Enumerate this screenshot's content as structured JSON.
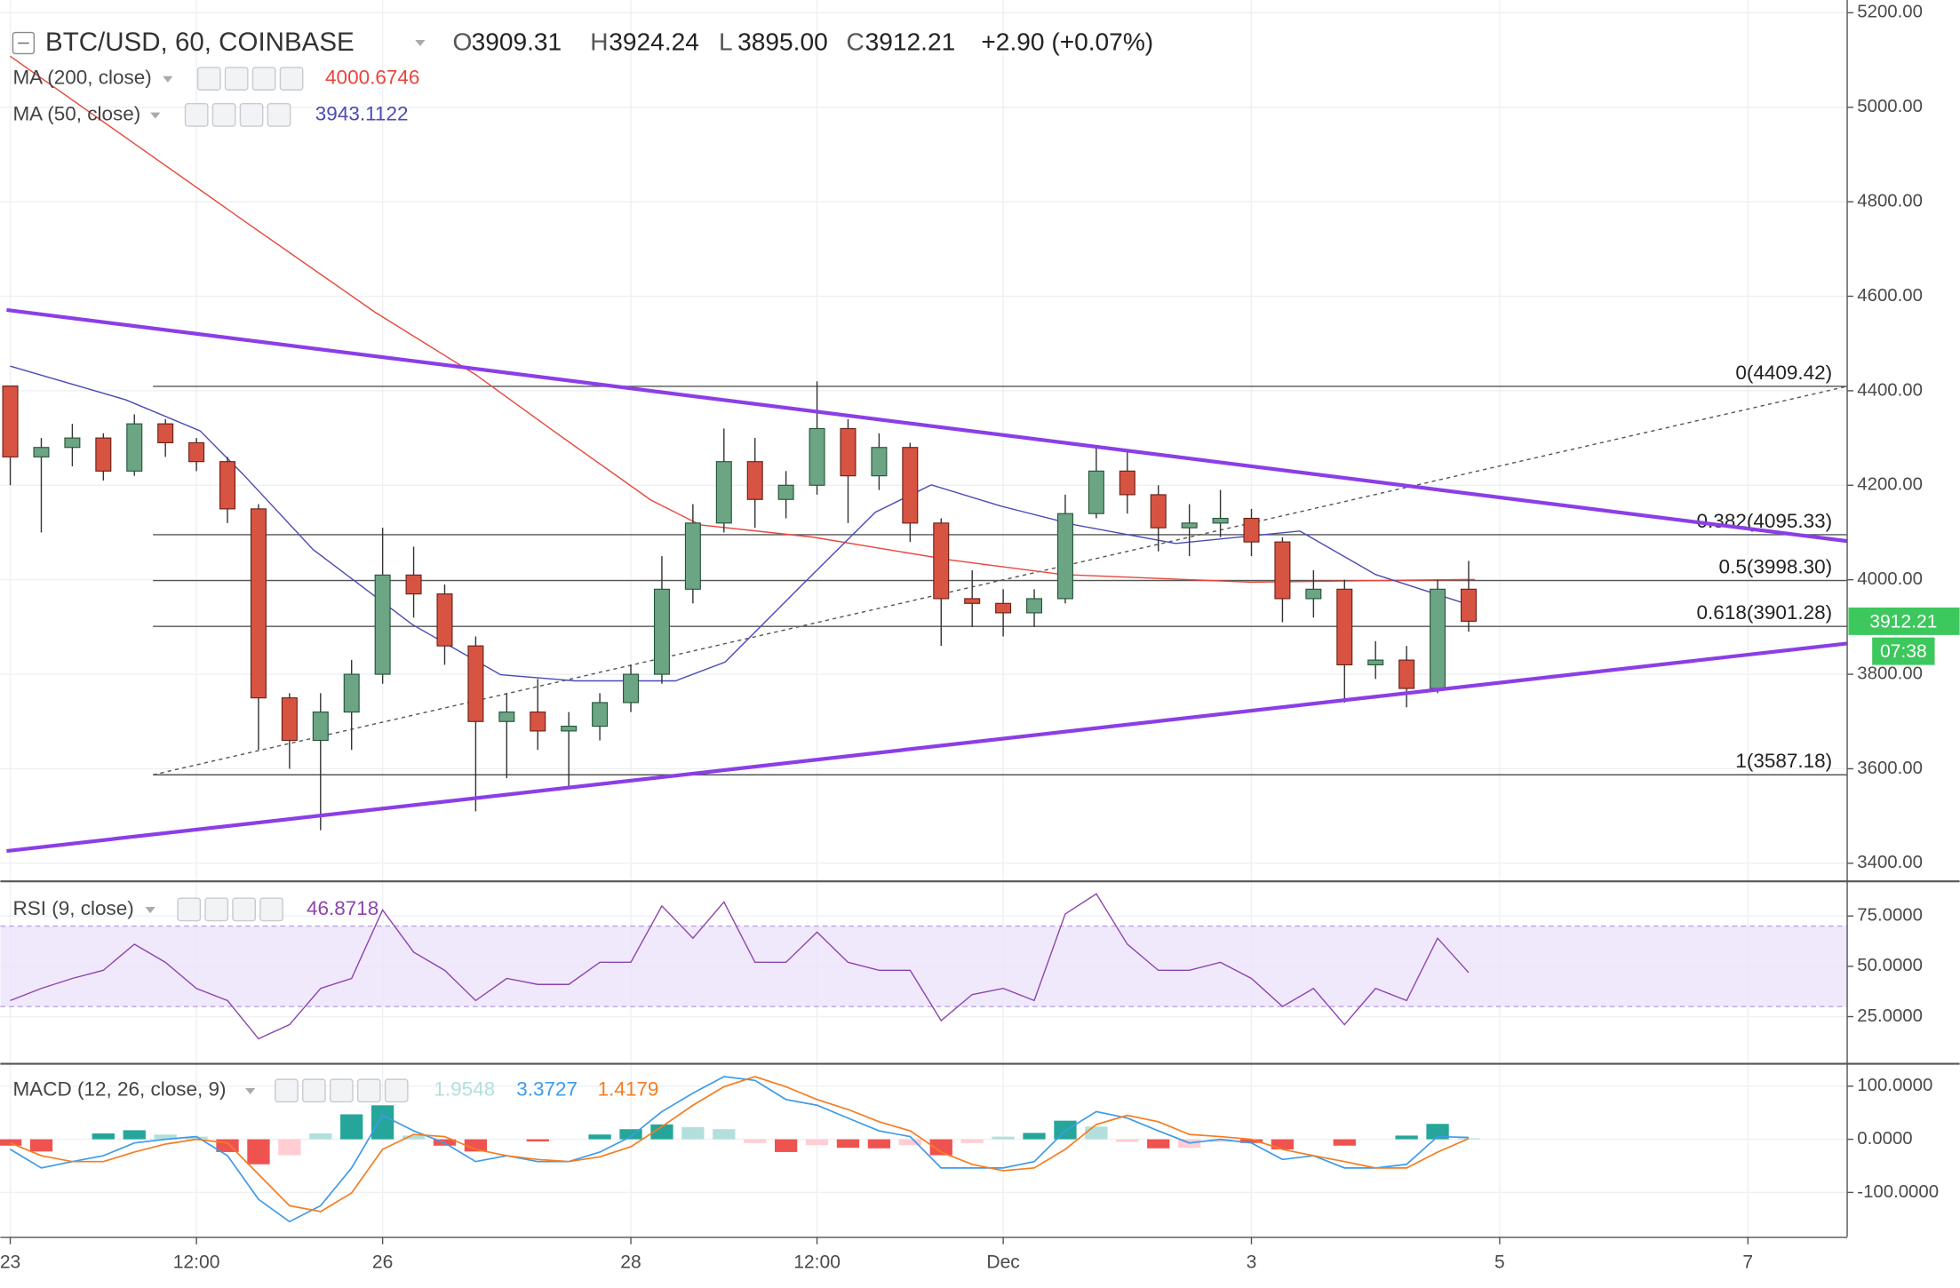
{
  "chart_data": [
    {
      "type": "candlestick",
      "title": "BTC/USD, 60, COINBASE",
      "ohlc": [
        {
          "key": "O",
          "value": "3909.31"
        },
        {
          "key": "H",
          "value": "3924.24"
        },
        {
          "key": "L",
          "value": "3895.00"
        },
        {
          "key": "C",
          "value": "3912.21"
        }
      ],
      "change": "+2.90 (+0.07%)",
      "x": [
        0,
        0.25,
        0.5,
        0.75,
        1,
        1.25,
        1.5,
        1.75,
        2,
        2.25,
        2.5,
        2.75,
        3,
        3.25,
        3.5,
        3.75,
        4,
        4.25,
        4.5,
        4.75,
        5,
        5.25,
        5.5,
        5.75,
        6,
        6.25,
        6.5,
        6.75,
        7,
        7.25,
        7.5,
        7.75,
        8,
        8.25,
        8.5,
        8.75,
        9,
        9.25,
        9.5,
        9.75,
        10,
        10.25,
        10.5,
        10.75,
        11,
        11.25,
        11.5,
        11.75
      ],
      "open": [
        4410,
        4260,
        4280,
        4300,
        4230,
        4330,
        4290,
        4250,
        4150,
        3750,
        3660,
        3720,
        3800,
        4010,
        3970,
        3860,
        3700,
        3720,
        3680,
        3690,
        3740,
        3800,
        3980,
        4120,
        4250,
        4170,
        4200,
        4320,
        4220,
        4280,
        4120,
        3960,
        3950,
        3930,
        3960,
        4140,
        4230,
        4180,
        4110,
        4120,
        4130,
        4080,
        3960,
        3980,
        3820,
        3830,
        3770,
        3980
      ],
      "high": [
        4410,
        4300,
        4330,
        4310,
        4350,
        4340,
        4300,
        4260,
        4160,
        3760,
        3760,
        3830,
        4110,
        4070,
        3990,
        3880,
        3760,
        3790,
        3720,
        3760,
        3820,
        4050,
        4160,
        4320,
        4300,
        4230,
        4420,
        4340,
        4310,
        4290,
        4130,
        4020,
        3980,
        3980,
        4180,
        4280,
        4270,
        4200,
        4160,
        4190,
        4150,
        4090,
        4020,
        4000,
        3870,
        3860,
        4000,
        4040
      ],
      "low": [
        4200,
        4100,
        4240,
        4210,
        4220,
        4260,
        4230,
        4120,
        3640,
        3600,
        3470,
        3640,
        3780,
        3920,
        3820,
        3510,
        3580,
        3640,
        3560,
        3660,
        3720,
        3780,
        3950,
        4100,
        4110,
        4130,
        4180,
        4120,
        4190,
        4080,
        3860,
        3900,
        3880,
        3900,
        3950,
        4130,
        4140,
        4060,
        4050,
        4090,
        4050,
        3910,
        3920,
        3740,
        3790,
        3730,
        3760,
        3890
      ],
      "close": [
        4260,
        4280,
        4300,
        4230,
        4330,
        4290,
        4250,
        4150,
        3750,
        3660,
        3720,
        3800,
        4010,
        3970,
        3860,
        3700,
        3720,
        3680,
        3690,
        3740,
        3800,
        3980,
        4120,
        4250,
        4170,
        4200,
        4320,
        4220,
        4280,
        4120,
        3960,
        3950,
        3930,
        3960,
        4140,
        4230,
        4180,
        4110,
        4120,
        4130,
        4080,
        3960,
        3980,
        3820,
        3830,
        3770,
        3980,
        3912.21
      ],
      "up_color": "#6ba583",
      "down_color": "#d75442",
      "series": [
        {
          "name": "MA (200, close)",
          "value_label": "4000.6746",
          "color": "#e8453c",
          "x": [
            0,
            0.93,
            1.93,
            2.94,
            3.75,
            4.45,
            5.16,
            5.56,
            6.47,
            7.57,
            8.48,
            9.99,
            11.8
          ],
          "values": [
            5108,
            4936,
            4751,
            4566,
            4434,
            4301,
            4169,
            4116,
            4090,
            4042,
            4011,
            3995,
            4000.6746
          ]
        },
        {
          "name": "MA (50, close)",
          "value_label": "3943.1122",
          "color": "#4a4ab5",
          "x": [
            0,
            0.93,
            1.53,
            1.88,
            2.44,
            3.24,
            3.95,
            4.55,
            5.36,
            5.76,
            6.36,
            6.97,
            7.42,
            7.98,
            8.58,
            9.39,
            10.39,
            11,
            11.8
          ],
          "values": [
            4452,
            4381,
            4315,
            4222,
            4064,
            3905,
            3799,
            3786,
            3786,
            3826,
            3984,
            4143,
            4201,
            4156,
            4116,
            4077,
            4103,
            4011,
            3943.1122
          ]
        }
      ],
      "trendlines": [
        {
          "color": "#8c3ee6",
          "x": [
            -0.03,
            14.8
          ],
          "values": [
            4571,
            4082
          ]
        },
        {
          "color": "#8c3ee6",
          "x": [
            -0.03,
            14.8
          ],
          "values": [
            3426,
            3865
          ]
        }
      ],
      "fib": {
        "start": 1.15,
        "color": "#555555",
        "levels": [
          {
            "value": 4409.42,
            "label": "0(4409.42)"
          },
          {
            "value": 4095.33,
            "label": "0.382(4095.33)"
          },
          {
            "value": 3998.3,
            "label": "0.5(3998.30)"
          },
          {
            "value": 3901.28,
            "label": "0.618(3901.28)"
          },
          {
            "value": 3587.18,
            "label": "1(3587.18)"
          }
        ]
      },
      "countdown": "07:38",
      "tag_color": "#3cc85c",
      "xlim": [
        -0.08,
        14.8
      ],
      "ylim": [
        3363,
        5227
      ],
      "yticks": [
        {
          "value": 3400,
          "label": "3400.00"
        },
        {
          "value": 3600,
          "label": "3600.00"
        },
        {
          "value": 3800,
          "label": "3800.00"
        },
        {
          "value": 4000,
          "label": "4000.00"
        },
        {
          "value": 4200,
          "label": "4200.00"
        },
        {
          "value": 4400,
          "label": "4400.00"
        },
        {
          "value": 4600,
          "label": "4600.00"
        },
        {
          "value": 4800,
          "label": "4800.00"
        },
        {
          "value": 5000,
          "label": "5000.00"
        },
        {
          "value": 5200,
          "label": "5200.00"
        }
      ],
      "grid": true
    },
    {
      "type": "line",
      "title": "RSI (9, close)",
      "series": [
        {
          "value_label": "46.8718",
          "color": "#8e44ad",
          "x": [
            0,
            0.25,
            0.5,
            0.75,
            1,
            1.25,
            1.5,
            1.75,
            2,
            2.25,
            2.5,
            2.75,
            3,
            3.25,
            3.5,
            3.75,
            4,
            4.25,
            4.5,
            4.75,
            5,
            5.25,
            5.5,
            5.75,
            6,
            6.25,
            6.5,
            6.75,
            7,
            7.25,
            7.5,
            7.75,
            8,
            8.25,
            8.5,
            8.75,
            9,
            9.25,
            9.5,
            9.75,
            10,
            10.25,
            10.5,
            10.75,
            11,
            11.25,
            11.5,
            11.75
          ],
          "values": [
            33,
            39,
            44,
            48,
            61,
            52,
            39,
            33,
            14,
            21,
            39,
            44,
            78,
            57,
            48,
            33,
            44,
            41,
            41,
            52,
            52,
            80,
            64,
            82,
            52,
            52,
            67,
            52,
            48,
            48,
            23,
            36,
            39,
            33,
            76,
            86,
            61,
            48,
            48,
            52,
            44,
            30,
            39,
            21,
            39,
            33,
            64,
            46.8718
          ]
        }
      ],
      "band": [
        30,
        70
      ],
      "band_color": "#ece3fb",
      "xlim": [
        -0.08,
        14.8
      ],
      "ylim": [
        1.9,
        91.9
      ],
      "yticks": [
        {
          "value": 25,
          "label": "25.0000"
        },
        {
          "value": 50,
          "label": "50.0000"
        },
        {
          "value": 75,
          "label": "75.0000"
        }
      ],
      "grid": true
    },
    {
      "type": "macd",
      "title": "MACD (12, 26, close, 9)",
      "x": [
        0,
        0.25,
        0.5,
        0.75,
        1,
        1.25,
        1.5,
        1.75,
        2,
        2.25,
        2.5,
        2.75,
        3,
        3.25,
        3.5,
        3.75,
        4,
        4.25,
        4.5,
        4.75,
        5,
        5.25,
        5.5,
        5.75,
        6,
        6.25,
        6.5,
        6.75,
        7,
        7.25,
        7.5,
        7.75,
        8,
        8.25,
        8.5,
        8.75,
        9,
        9.25,
        9.5,
        9.75,
        10,
        10.25,
        10.5,
        10.75,
        11,
        11.25,
        11.5,
        11.75
      ],
      "histogram": {
        "value_label": "1.9548",
        "colors": {
          "up_grow": "#26a69a",
          "up_fall": "#b2dfdb",
          "down_grow": "#ef5350",
          "down_fall": "#ffcdd2"
        },
        "values": [
          -12,
          -23,
          0,
          11,
          17,
          9,
          5,
          -24,
          -47,
          -30,
          11,
          47,
          64,
          7,
          -12,
          -23,
          0,
          -4,
          0,
          9,
          19,
          28,
          23,
          19,
          -7,
          -24,
          -11,
          -16,
          -17,
          -11,
          -30,
          -7,
          5,
          12,
          35,
          24,
          -5,
          -17,
          -16,
          -5,
          -7,
          -19,
          0,
          -12,
          0,
          7,
          29,
          1.9548
        ]
      },
      "series": [
        {
          "value_label": "3.3727",
          "color": "#3d9be9",
          "values": [
            -19,
            -54,
            -42,
            -31,
            -7,
            0,
            5,
            -31,
            -113,
            -155,
            -125,
            -54,
            45,
            16,
            -7,
            -42,
            -31,
            -42,
            -42,
            -24,
            5,
            52,
            87,
            118,
            111,
            75,
            64,
            40,
            16,
            5,
            -54,
            -54,
            -54,
            -42,
            16,
            52,
            40,
            16,
            -7,
            0,
            -7,
            -38,
            -31,
            -54,
            -54,
            -47,
            5,
            3.3727
          ]
        },
        {
          "value_label": "1.4179",
          "color": "#f57c20",
          "values": [
            -7,
            -31,
            -42,
            -42,
            -24,
            -9,
            0,
            -7,
            -66,
            -125,
            -136,
            -101,
            -19,
            9,
            5,
            -19,
            -31,
            -38,
            -42,
            -33,
            -14,
            24,
            64,
            99,
            118,
            99,
            75,
            56,
            33,
            16,
            -24,
            -47,
            -59,
            -54,
            -19,
            28,
            45,
            33,
            9,
            5,
            0,
            -19,
            -31,
            -42,
            -54,
            -54,
            -24,
            1.4179
          ]
        }
      ],
      "xlim": [
        -0.08,
        14.8
      ],
      "ylim": [
        -183.5,
        141
      ],
      "yticks": [
        {
          "value": -100,
          "label": "-100.0000"
        },
        {
          "value": 0,
          "label": "0.0000"
        },
        {
          "value": 100,
          "label": "100.0000"
        }
      ],
      "xticks": [
        {
          "value": 0,
          "label": "23"
        },
        {
          "value": 1.5,
          "label": "12:00"
        },
        {
          "value": 3,
          "label": "26"
        },
        {
          "value": 5,
          "label": "28"
        },
        {
          "value": 6.5,
          "label": "12:00"
        },
        {
          "value": 8,
          "label": "Dec"
        },
        {
          "value": 10,
          "label": "3"
        },
        {
          "value": 12,
          "label": "5"
        },
        {
          "value": 14,
          "label": "7"
        }
      ],
      "grid": true
    }
  ]
}
